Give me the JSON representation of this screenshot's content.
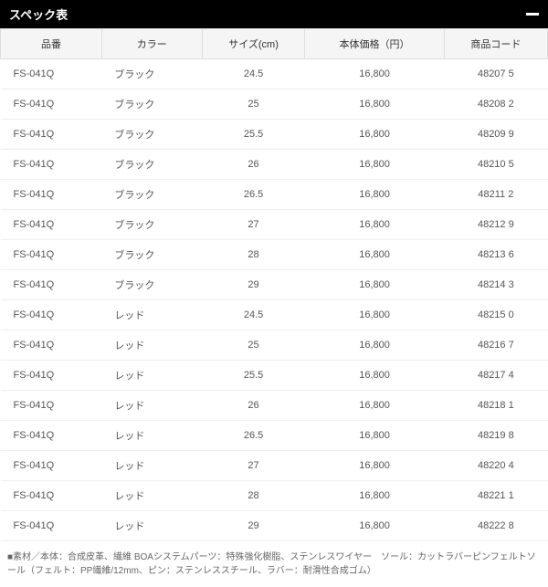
{
  "header": {
    "title": "スペック表"
  },
  "table": {
    "columns": [
      "品番",
      "カラー",
      "サイズ(cm)",
      "本体価格（円）",
      "商品コード"
    ],
    "rows": [
      [
        "FS-041Q",
        "ブラック",
        "24.5",
        "16,800",
        "48207 5"
      ],
      [
        "FS-041Q",
        "ブラック",
        "25",
        "16,800",
        "48208 2"
      ],
      [
        "FS-041Q",
        "ブラック",
        "25.5",
        "16,800",
        "48209 9"
      ],
      [
        "FS-041Q",
        "ブラック",
        "26",
        "16,800",
        "48210 5"
      ],
      [
        "FS-041Q",
        "ブラック",
        "26.5",
        "16,800",
        "48211 2"
      ],
      [
        "FS-041Q",
        "ブラック",
        "27",
        "16,800",
        "48212 9"
      ],
      [
        "FS-041Q",
        "ブラック",
        "28",
        "16,800",
        "48213 6"
      ],
      [
        "FS-041Q",
        "ブラック",
        "29",
        "16,800",
        "48214 3"
      ],
      [
        "FS-041Q",
        "レッド",
        "24.5",
        "16,800",
        "48215 0"
      ],
      [
        "FS-041Q",
        "レッド",
        "25",
        "16,800",
        "48216 7"
      ],
      [
        "FS-041Q",
        "レッド",
        "25.5",
        "16,800",
        "48217 4"
      ],
      [
        "FS-041Q",
        "レッド",
        "26",
        "16,800",
        "48218 1"
      ],
      [
        "FS-041Q",
        "レッド",
        "26.5",
        "16,800",
        "48219 8"
      ],
      [
        "FS-041Q",
        "レッド",
        "27",
        "16,800",
        "48220 4"
      ],
      [
        "FS-041Q",
        "レッド",
        "28",
        "16,800",
        "48221 1"
      ],
      [
        "FS-041Q",
        "レッド",
        "29",
        "16,800",
        "48222 8"
      ]
    ]
  },
  "footnote": "■素材／本体：合成皮革、繊維 BOAシステムパーツ：特殊強化樹脂、ステンレスワイヤー　ソール：カットラバーピンフェルトソール（フェルト：PP繊維/12mm、ピン：ステンレススチール、ラバー：耐滑性合成ゴム）"
}
